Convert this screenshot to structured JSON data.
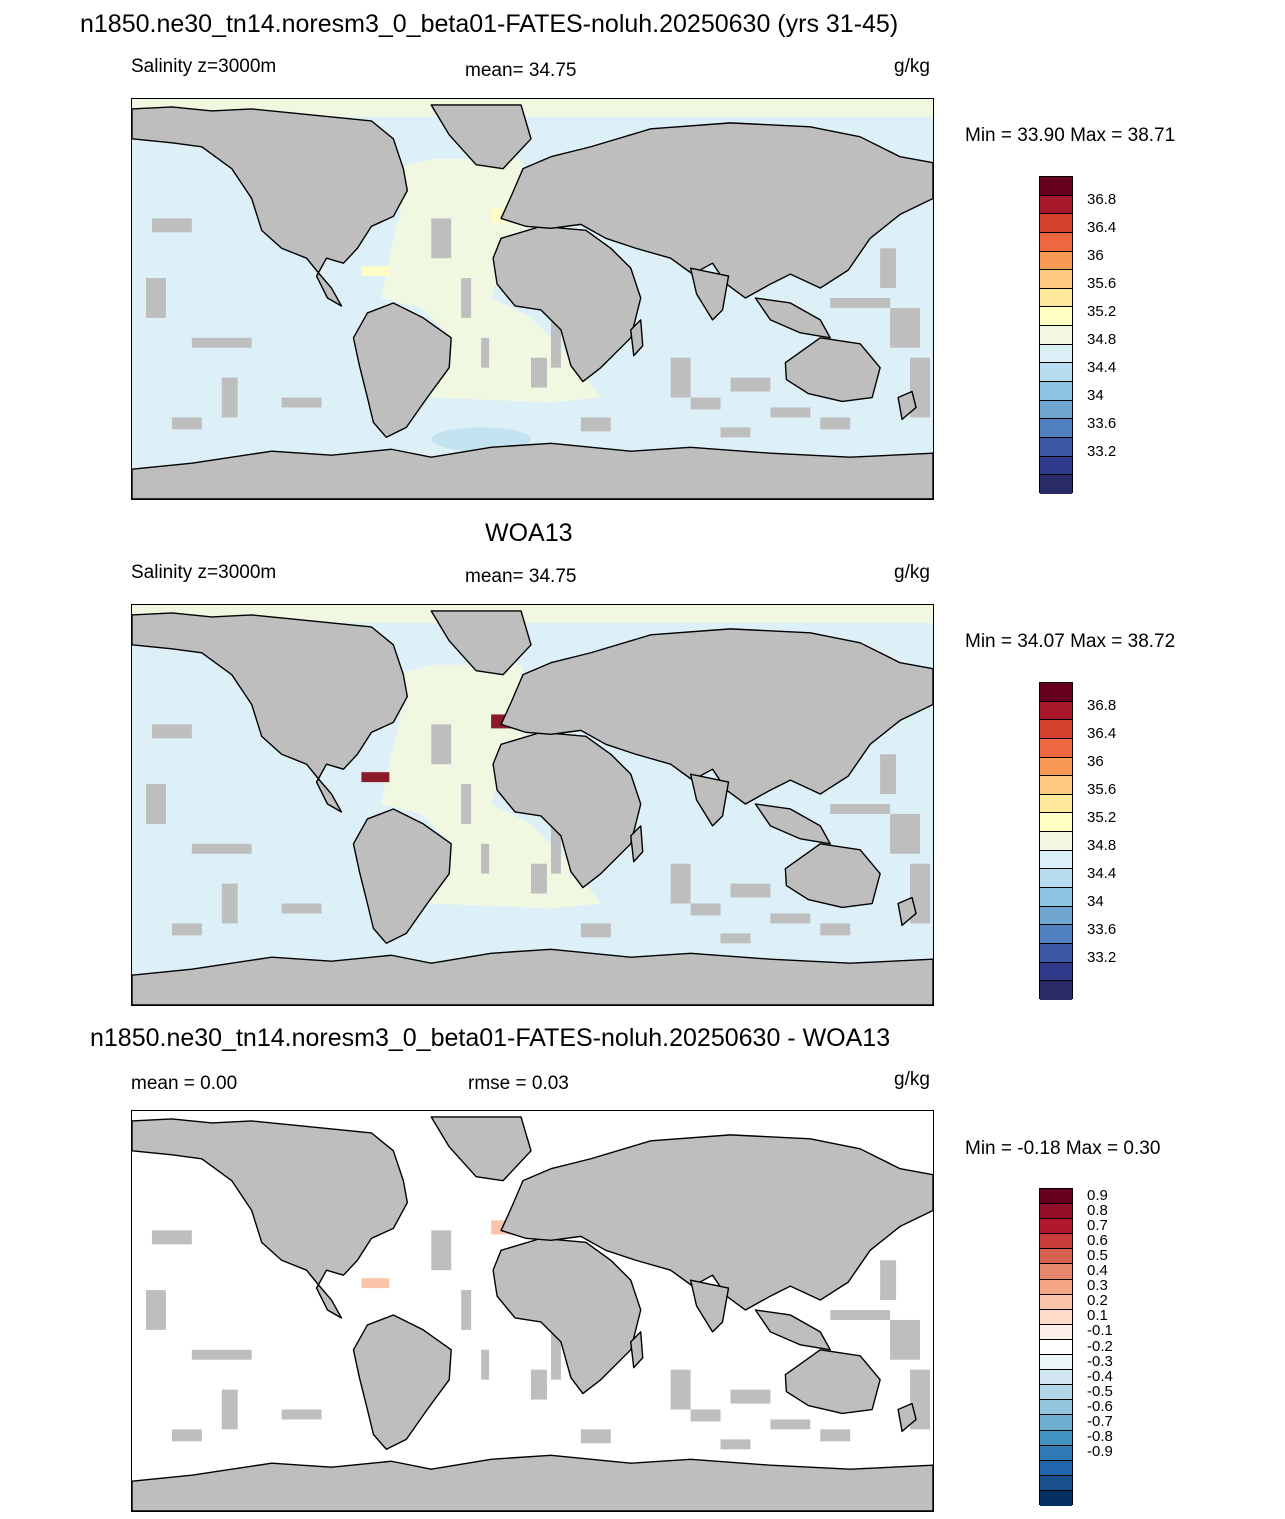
{
  "panels": [
    {
      "title": "n1850.ne30_tn14.noresm3_0_beta01-FATES-noluh.20250630 (yrs 31-45)",
      "left_label": "Salinity z=3000m",
      "center_label": "mean=  34.75",
      "units": "g/kg",
      "minmax": "Min =  33.90 Max =  38.71",
      "colorbar": {
        "colors": [
          "#67001f",
          "#a7182a",
          "#d6402f",
          "#ee6741",
          "#f89a54",
          "#fdc97f",
          "#fee89a",
          "#ffffc4",
          "#f2f9e0",
          "#dbeff6",
          "#b6def0",
          "#8cc4e1",
          "#6ea6d0",
          "#5281bf",
          "#3a57a3",
          "#2f3a8a",
          "#282b68"
        ],
        "labels": [
          "36.8",
          "36.4",
          "36",
          "35.6",
          "35.2",
          "34.8",
          "34.4",
          "34",
          "33.6",
          "33.2"
        ]
      },
      "ocean_color": "#ddf0f8",
      "atlantic_color": "#f1f8e2",
      "patch_color": "#fdfdc5",
      "south_patch_color": "#c4e3f1"
    },
    {
      "title": "WOA13",
      "left_label": "Salinity z=3000m",
      "center_label": "mean=  34.75",
      "units": "g/kg",
      "minmax": "Min =  34.07 Max =  38.72",
      "colorbar": {
        "colors": [
          "#67001f",
          "#a7182a",
          "#d6402f",
          "#ee6741",
          "#f89a54",
          "#fdc97f",
          "#fee89a",
          "#ffffc4",
          "#f2f9e0",
          "#dbeff6",
          "#b6def0",
          "#8cc4e1",
          "#6ea6d0",
          "#5281bf",
          "#3a57a3",
          "#2f3a8a",
          "#282b68"
        ],
        "labels": [
          "36.8",
          "36.4",
          "36",
          "35.6",
          "35.2",
          "34.8",
          "34.4",
          "34",
          "33.6",
          "33.2"
        ]
      },
      "ocean_color": "#ddf0f8",
      "atlantic_color": "#f1f8e2",
      "patch_color": "#8b1a2a",
      "south_patch_color": "#ddf0f8"
    },
    {
      "title": "n1850.ne30_tn14.noresm3_0_beta01-FATES-noluh.20250630 - WOA13",
      "left_label": "mean =   0.00",
      "center_label": "rmse =   0.03",
      "units": "g/kg",
      "minmax": "Min =  -0.18 Max =   0.30",
      "colorbar": {
        "colors": [
          "#67001f",
          "#930f28",
          "#b2182b",
          "#c83c3c",
          "#d6604d",
          "#e7866c",
          "#f4a582",
          "#f9c4a9",
          "#fddbc7",
          "#fdefe7",
          "#ffffff",
          "#eef5f9",
          "#d1e5f0",
          "#b3d5e8",
          "#92c5de",
          "#6eaed1",
          "#4393c3",
          "#2f79b5",
          "#2166ac",
          "#184f8d",
          "#053061"
        ],
        "labels": [
          "0.9",
          "0.8",
          "0.7",
          "0.6",
          "0.5",
          "0.4",
          "0.3",
          "0.2",
          "0.1",
          "-0.1",
          "-0.2",
          "-0.3",
          "-0.4",
          "-0.5",
          "-0.6",
          "-0.7",
          "-0.8",
          "-0.9"
        ]
      },
      "ocean_color": "#ffffff",
      "atlantic_color": "#ffffff",
      "patch_color": "#f9c4a9",
      "south_patch_color": "#ffffff"
    }
  ]
}
